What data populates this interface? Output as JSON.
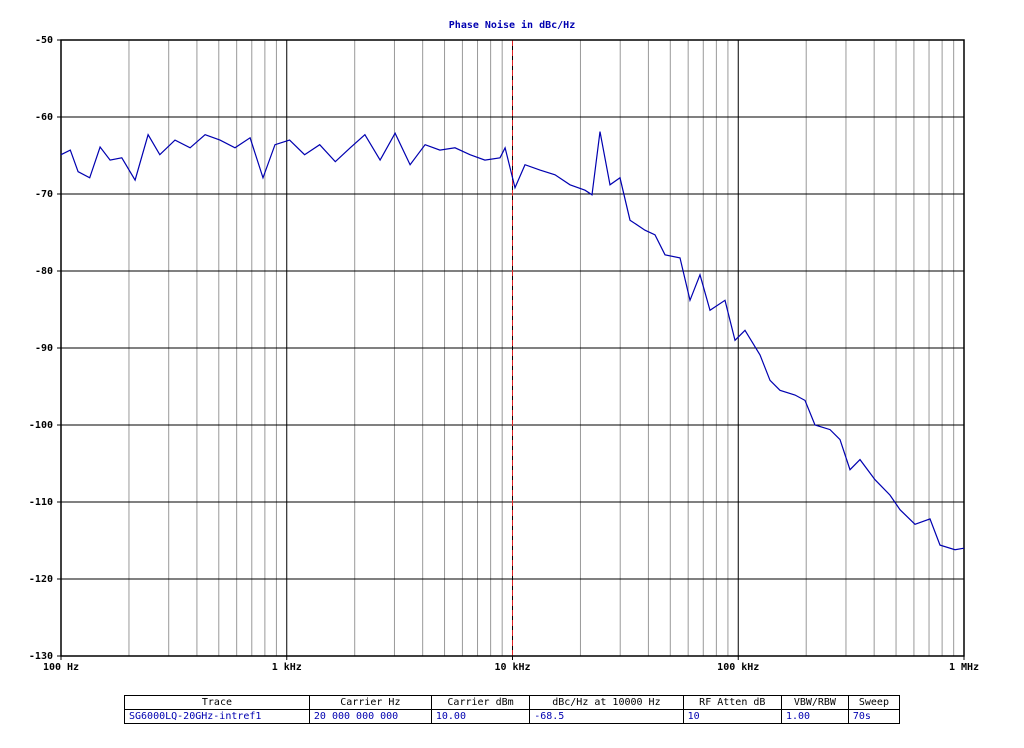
{
  "chart_data": {
    "type": "line",
    "title": "Phase Noise in dBc/Hz",
    "log_x": true,
    "grid": true,
    "xlim": [
      100,
      1000000
    ],
    "ylim": [
      -130,
      -50
    ],
    "xticks": [
      {
        "value": 100,
        "label": "100 Hz"
      },
      {
        "value": 1000,
        "label": "1 kHz"
      },
      {
        "value": 10000,
        "label": "10 kHz"
      },
      {
        "value": 100000,
        "label": "100 kHz"
      },
      {
        "value": 1000000,
        "label": "1 MHz"
      }
    ],
    "yticks": [
      -130,
      -120,
      -110,
      -100,
      -90,
      -80,
      -70,
      -60,
      -50
    ],
    "x_minor_grid": [
      200,
      300,
      400,
      500,
      600,
      700,
      800,
      900,
      2000,
      3000,
      4000,
      5000,
      6000,
      7000,
      8000,
      9000,
      20000,
      30000,
      40000,
      50000,
      60000,
      70000,
      80000,
      90000,
      200000,
      300000,
      400000,
      500000,
      600000,
      700000,
      800000,
      900000
    ],
    "marker_x": 10000,
    "marker_color": "#dd2222",
    "x": [
      100,
      110,
      119,
      134,
      149,
      165,
      186,
      213,
      243,
      274,
      320,
      373,
      435,
      506,
      590,
      688,
      785,
      887,
      1030,
      1200,
      1400,
      1640,
      1910,
      2220,
      2590,
      3020,
      3520,
      4100,
      4770,
      5560,
      6480,
      7550,
      8800,
      9270,
      10260,
      11360,
      13240,
      15430,
      17980,
      20950,
      22500,
      24410,
      27040,
      29950,
      33160,
      38640,
      42790,
      47390,
      55210,
      61150,
      67720,
      74990,
      87380,
      96740,
      107100,
      124800,
      138200,
      153100,
      178400,
      197600,
      218800,
      255000,
      282300,
      312600,
      346200,
      403500,
      470100,
      520600,
      606700,
      707000,
      782900,
      912300,
      1000000
    ],
    "series": [
      {
        "name": "SG6000LQ-20GHz-intref1",
        "color": "#0000b0",
        "values": [
          -64.9,
          -64.3,
          -67.1,
          -67.9,
          -63.9,
          -65.6,
          -65.3,
          -68.2,
          -62.3,
          -64.9,
          -63.0,
          -64.0,
          -62.3,
          -63.0,
          -64.0,
          -62.7,
          -67.9,
          -63.6,
          -63.0,
          -64.9,
          -63.6,
          -65.8,
          -64.0,
          -62.3,
          -65.6,
          -62.1,
          -66.2,
          -63.6,
          -64.3,
          -64.0,
          -64.9,
          -65.6,
          -65.3,
          -64.0,
          -69.2,
          -66.2,
          -66.9,
          -67.5,
          -68.8,
          -69.5,
          -70.1,
          -61.9,
          -68.8,
          -67.9,
          -73.4,
          -74.7,
          -75.3,
          -77.9,
          -78.3,
          -83.8,
          -80.5,
          -85.1,
          -83.8,
          -89.0,
          -87.7,
          -90.9,
          -94.2,
          -95.5,
          -96.1,
          -96.8,
          -100.0,
          -100.6,
          -101.9,
          -105.8,
          -104.5,
          -107.1,
          -109.1,
          -111.0,
          -112.9,
          -112.2,
          -115.6,
          -116.2,
          -116.0
        ]
      }
    ]
  },
  "table": {
    "columns": [
      "Trace",
      "Carrier Hz",
      "Carrier dBm",
      "dBc/Hz at 10000 Hz",
      "RF Atten dB",
      "VBW/RBW",
      "Sweep"
    ],
    "rows": [
      [
        "SG6000LQ-20GHz-intref1",
        "20 000 000 000",
        "10.00",
        "-68.5",
        "10",
        "1.00",
        "70s"
      ]
    ]
  }
}
